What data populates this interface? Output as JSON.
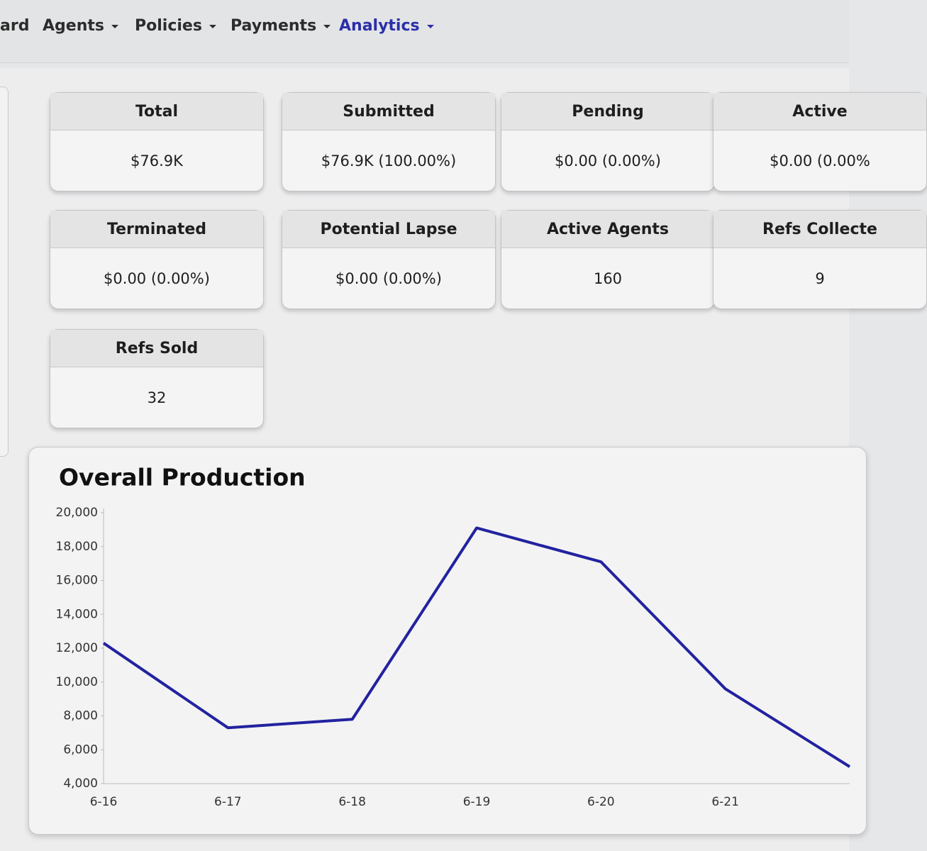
{
  "nav": [
    "ard",
    "Agents",
    "Policies",
    "Payments",
    "Analytics"
  ],
  "cards": [
    {
      "title": "Total",
      "value": "$76.9K"
    },
    {
      "title": "Submitted",
      "value": "$76.9K (100.00%)"
    },
    {
      "title": "Pending",
      "value": "$0.00 (0.00%)"
    },
    {
      "title": "Active",
      "value": "$0.00 (0.00%"
    },
    {
      "title": "Terminated",
      "value": "$0.00 (0.00%)"
    },
    {
      "title": "Potential Lapse",
      "value": "$0.00 (0.00%)"
    },
    {
      "title": "Active Agents",
      "value": 160
    },
    {
      "title": "Refs Collecte",
      "value": 9
    },
    {
      "title": "Refs Sold",
      "value": 32
    }
  ],
  "chart_data": {
    "type": "line",
    "title": "Overall Production",
    "categories": [
      "6-16",
      "6-17",
      "6-18",
      "6-19",
      "6-20",
      "6-21",
      null
    ],
    "series": [
      {
        "name": "Production",
        "color": "#2222a0",
        "values": [
          12300,
          7300,
          7800,
          19100,
          17100,
          9600,
          5000
        ]
      }
    ],
    "ylim": [
      4000,
      20000
    ],
    "yticks": [
      {
        "value": 4000,
        "label": "4,000"
      },
      {
        "value": 6000,
        "label": "6,000"
      },
      {
        "value": 8000,
        "label": "8,000"
      },
      {
        "value": 10000,
        "label": "10,000"
      },
      {
        "value": 12000,
        "label": "12,000"
      },
      {
        "value": 14000,
        "label": "14,000"
      },
      {
        "value": 16000,
        "label": "16,000"
      },
      {
        "value": 18000,
        "label": "18,000"
      },
      {
        "value": 20000,
        "label": "20,000"
      }
    ],
    "grid": false
  }
}
